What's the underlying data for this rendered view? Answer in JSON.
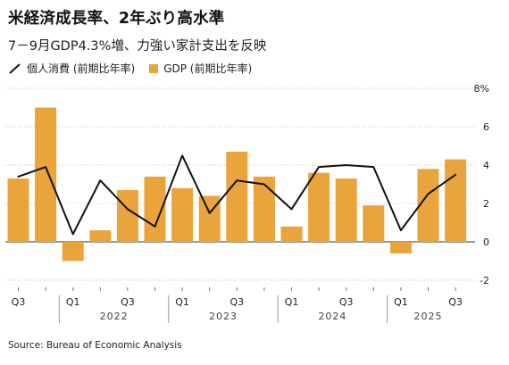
{
  "title": "米経済成長率、2年ぶり高水準",
  "subtitle": "7－9月GDP4.3%増、力強い家計支出を反映",
  "source": "Source: Bureau of Economic Analysis",
  "colors": {
    "bar": "#e9a43c",
    "line": "#111111"
  },
  "chart_data": {
    "type": "bar",
    "categories": [
      "2021 Q3",
      "2021 Q4",
      "2022 Q1",
      "2022 Q2",
      "2022 Q3",
      "2022 Q4",
      "2023 Q1",
      "2023 Q2",
      "2023 Q3",
      "2023 Q4",
      "2024 Q1",
      "2024 Q2",
      "2024 Q3",
      "2024 Q4",
      "2025 Q1",
      "2025 Q2",
      "2025 Q3"
    ],
    "series": [
      {
        "name": "GDP (前期比年率)",
        "type": "bar",
        "values": [
          3.3,
          7.0,
          -1.0,
          0.6,
          2.7,
          3.4,
          2.8,
          2.4,
          4.7,
          3.4,
          0.8,
          3.6,
          3.3,
          1.9,
          -0.6,
          3.8,
          4.3
        ]
      },
      {
        "name": "個人消費 (前期比年率)",
        "type": "line",
        "values": [
          3.4,
          3.9,
          0.4,
          3.2,
          1.7,
          0.8,
          4.5,
          1.5,
          3.2,
          3.0,
          1.7,
          3.9,
          4.0,
          3.9,
          0.6,
          2.5,
          3.5
        ]
      }
    ],
    "y_ticks": [
      "8%",
      "6",
      "4",
      "2",
      "0",
      "-2"
    ],
    "ylim": [
      -2,
      8
    ],
    "x_tick_labels": [
      {
        "index": 0,
        "label": "Q3"
      },
      {
        "index": 2,
        "label": "Q1"
      },
      {
        "index": 4,
        "label": "Q3"
      },
      {
        "index": 6,
        "label": "Q1"
      },
      {
        "index": 8,
        "label": "Q3"
      },
      {
        "index": 10,
        "label": "Q1"
      },
      {
        "index": 12,
        "label": "Q3"
      },
      {
        "index": 14,
        "label": "Q1"
      },
      {
        "index": 16,
        "label": "Q3"
      }
    ],
    "year_labels": [
      {
        "label": "2022",
        "start": 2,
        "end": 5
      },
      {
        "label": "2023",
        "start": 6,
        "end": 9
      },
      {
        "label": "2024",
        "start": 10,
        "end": 13
      },
      {
        "label": "2025",
        "start": 14,
        "end": 16
      }
    ],
    "legend_position": "top-left",
    "grid": true
  }
}
